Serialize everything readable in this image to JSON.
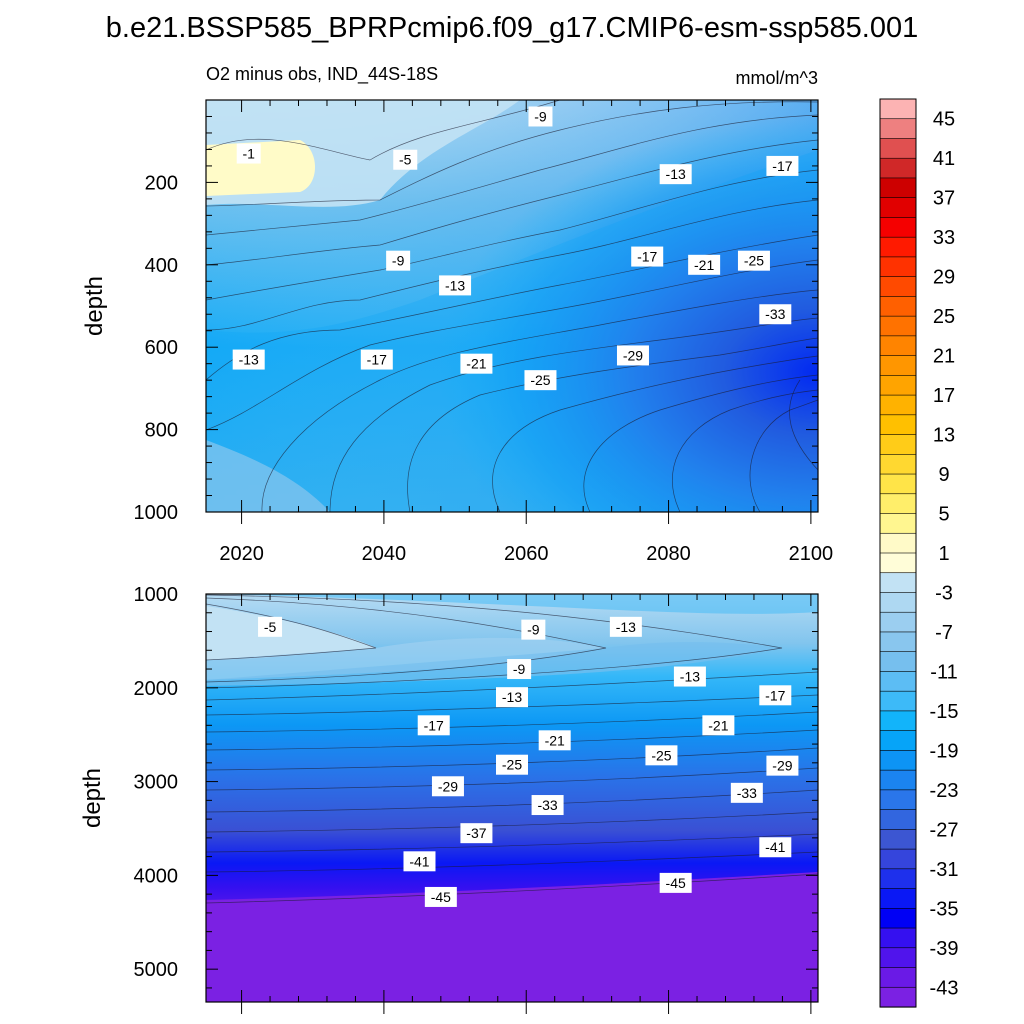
{
  "title": "b.e21.BSSP585_BPRPcmip6.f09_g17.CMIP6-esm-ssp585.001",
  "chart_data": [
    {
      "type": "contour",
      "panel": "upper",
      "subtitle_left": "O2 minus obs, IND_44S-18S",
      "subtitle_right": "mmol/m^3",
      "xlabel": "",
      "ylabel": "depth",
      "xlim": [
        2015,
        2101
      ],
      "ylim": [
        1000,
        0
      ],
      "xticks": [
        2020,
        2040,
        2060,
        2080,
        2100
      ],
      "yticks": [
        200,
        400,
        600,
        800,
        1000
      ],
      "contour_labels": [
        {
          "text": "-1",
          "x": 2021,
          "y": 130
        },
        {
          "text": "-5",
          "x": 2043,
          "y": 145
        },
        {
          "text": "-9",
          "x": 2062,
          "y": 40
        },
        {
          "text": "-13",
          "x": 2081,
          "y": 180
        },
        {
          "text": "-17",
          "x": 2096,
          "y": 160
        },
        {
          "text": "-9",
          "x": 2042,
          "y": 390
        },
        {
          "text": "-13",
          "x": 2050,
          "y": 450
        },
        {
          "text": "-17",
          "x": 2077,
          "y": 380
        },
        {
          "text": "-21",
          "x": 2085,
          "y": 400
        },
        {
          "text": "-25",
          "x": 2092,
          "y": 390
        },
        {
          "text": "-33",
          "x": 2095,
          "y": 520
        },
        {
          "text": "-13",
          "x": 2021,
          "y": 630
        },
        {
          "text": "-17",
          "x": 2039,
          "y": 630
        },
        {
          "text": "-21",
          "x": 2053,
          "y": 640
        },
        {
          "text": "-25",
          "x": 2062,
          "y": 680
        },
        {
          "text": "-29",
          "x": 2075,
          "y": 620
        }
      ]
    },
    {
      "type": "contour",
      "panel": "lower",
      "xlabel": "",
      "ylabel": "depth",
      "xlim": [
        2015,
        2101
      ],
      "ylim": [
        5350,
        1000
      ],
      "yticks": [
        1000,
        2000,
        3000,
        4000,
        5000
      ],
      "contour_labels": [
        {
          "text": "-5",
          "x": 2024,
          "y": 1350
        },
        {
          "text": "-9",
          "x": 2061,
          "y": 1380
        },
        {
          "text": "-13",
          "x": 2074,
          "y": 1350
        },
        {
          "text": "-9",
          "x": 2059,
          "y": 1800
        },
        {
          "text": "-13",
          "x": 2083,
          "y": 1880
        },
        {
          "text": "-13",
          "x": 2058,
          "y": 2100
        },
        {
          "text": "-17",
          "x": 2095,
          "y": 2080
        },
        {
          "text": "-17",
          "x": 2047,
          "y": 2400
        },
        {
          "text": "-21",
          "x": 2087,
          "y": 2400
        },
        {
          "text": "-21",
          "x": 2064,
          "y": 2560
        },
        {
          "text": "-25",
          "x": 2058,
          "y": 2820
        },
        {
          "text": "-25",
          "x": 2079,
          "y": 2720
        },
        {
          "text": "-29",
          "x": 2096,
          "y": 2830
        },
        {
          "text": "-29",
          "x": 2049,
          "y": 3050
        },
        {
          "text": "-33",
          "x": 2063,
          "y": 3250
        },
        {
          "text": "-33",
          "x": 2091,
          "y": 3120
        },
        {
          "text": "-37",
          "x": 2053,
          "y": 3550
        },
        {
          "text": "-41",
          "x": 2045,
          "y": 3850
        },
        {
          "text": "-41",
          "x": 2095,
          "y": 3700
        },
        {
          "text": "-45",
          "x": 2048,
          "y": 4230
        },
        {
          "text": "-45",
          "x": 2081,
          "y": 4080
        }
      ]
    }
  ],
  "colorbar": {
    "levels": [
      -45,
      -43,
      -41,
      -39,
      -37,
      -35,
      -33,
      -31,
      -29,
      -27,
      -25,
      -23,
      -21,
      -19,
      -17,
      -15,
      -13,
      -11,
      -9,
      -7,
      -5,
      -3,
      -1,
      1,
      3,
      5,
      7,
      9,
      11,
      13,
      15,
      17,
      19,
      21,
      23,
      25,
      27,
      29,
      31,
      33,
      35,
      37,
      39,
      41,
      43,
      45
    ],
    "labels": [
      "45",
      "41",
      "37",
      "33",
      "29",
      "25",
      "21",
      "17",
      "13",
      "9",
      "5",
      "1",
      "-3",
      "-7",
      "-11",
      "-15",
      "-19",
      "-23",
      "-27",
      "-31",
      "-35",
      "-39",
      "-43"
    ],
    "colors_top_to_bottom": [
      "#fcb3b3",
      "#ee8080",
      "#e05050",
      "#d02828",
      "#cd0000",
      "#e10000",
      "#f50000",
      "#ff1a00",
      "#ff3200",
      "#ff4a00",
      "#ff6000",
      "#ff7200",
      "#ff8400",
      "#ff9600",
      "#ffa400",
      "#ffb200",
      "#ffc000",
      "#ffcc18",
      "#ffd830",
      "#ffe448",
      "#ffee6a",
      "#fff690",
      "#fffac8",
      "#fffdd8",
      "#c2e2f4",
      "#aed8f2",
      "#9bcef0",
      "#89c6ee",
      "#76bfee",
      "#5cbdf4",
      "#3dbaf8",
      "#12b4fa",
      "#06a4f8",
      "#0d94f5",
      "#1b84f0",
      "#2a76ea",
      "#3266df",
      "#3c56d2",
      "#3545dc",
      "#1e30ec",
      "#0a18f5",
      "#0000f5",
      "#3510f0",
      "#5014ec",
      "#6a1ae6",
      "#7b21e3"
    ]
  }
}
